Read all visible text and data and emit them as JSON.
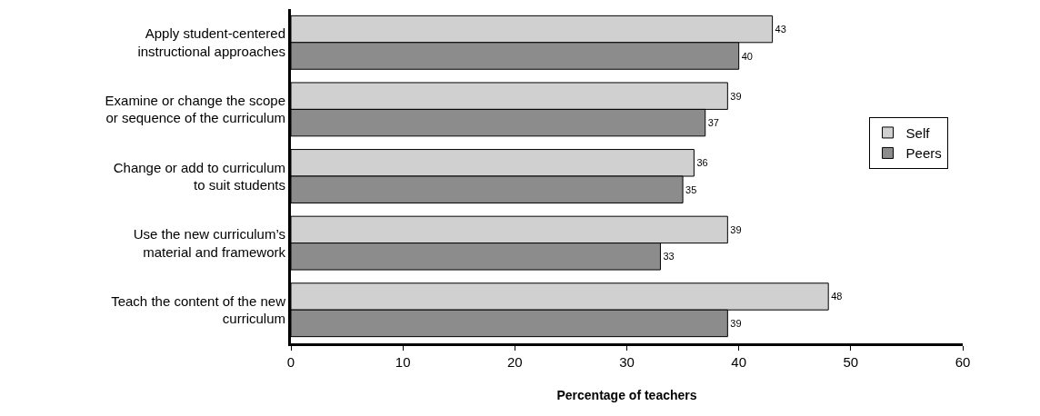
{
  "chart_data": {
    "type": "bar",
    "orientation": "horizontal",
    "xlabel": "Percentage of teachers",
    "categories": [
      "Apply student-centered\ninstructional approaches",
      "Examine or change the scope\nor sequence of the curriculum",
      "Change or add to curriculum\nto suit students",
      "Use the new curriculum’s\nmaterial and framework",
      "Teach the content of the new\ncurriculum"
    ],
    "series": [
      {
        "name": "Self",
        "color": "#d0d0d0",
        "values": [
          43,
          39,
          36,
          39,
          48
        ]
      },
      {
        "name": "Peers",
        "color": "#8c8c8c",
        "values": [
          40,
          37,
          35,
          33,
          39
        ]
      }
    ],
    "xlim": [
      0,
      60
    ],
    "xticks": [
      0,
      10,
      20,
      30,
      40,
      50,
      60
    ],
    "data_labels": true,
    "legend": "right"
  }
}
